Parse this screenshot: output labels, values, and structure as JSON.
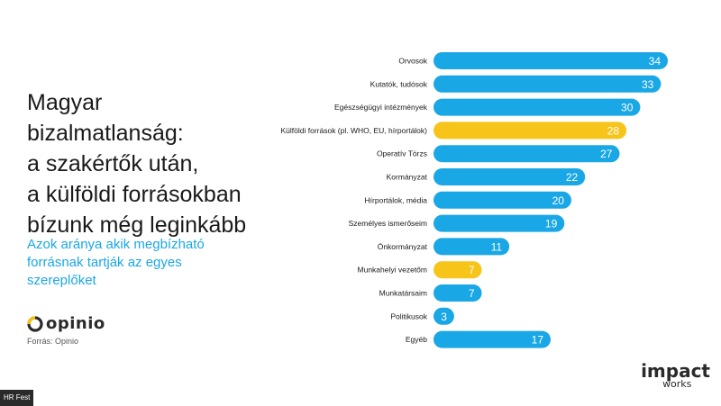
{
  "title_lines": [
    "Magyar",
    "bizalmatlanság:",
    "a szakértők után,",
    "a külföldi forrásokban",
    "bízunk még leginkább"
  ],
  "subtitle_lines": [
    "Azok aránya akik megbízható",
    "forrásnak tartják az egyes",
    "szereplőket"
  ],
  "logo": {
    "text": "opinio",
    "mark_color": "#f5c200"
  },
  "source": "Forrás: Opinio",
  "badge": "HR Fest",
  "brand": {
    "line1": "impact",
    "line2": "works"
  },
  "colors": {
    "bar_default": "#1aa7e6",
    "bar_highlight": "#f7c419",
    "label": "#1a1a1a",
    "value": "#ffffff"
  },
  "chart_data": {
    "type": "bar",
    "orientation": "horizontal",
    "categories": [
      "Orvosok",
      "Kutatók, tudósok",
      "Egészségügyi intézmények",
      "Külföldi források (pl. WHO, EU, hírportálok)",
      "Operatív Törzs",
      "Kormányzat",
      "Hírportálok, média",
      "Személyes ismerőseim",
      "Önkormányzat",
      "Munkahelyi vezetőm",
      "Munkatársaim",
      "Politikusok",
      "Egyéb"
    ],
    "values": [
      34,
      33,
      30,
      28,
      27,
      22,
      20,
      19,
      11,
      7,
      7,
      3,
      17
    ],
    "labels": [
      "34",
      "33",
      "30",
      "28",
      "27",
      "22",
      "20",
      "19",
      "11",
      "7",
      "7",
      "3",
      "17"
    ],
    "highlighted": [
      false,
      false,
      false,
      true,
      false,
      false,
      false,
      false,
      false,
      true,
      false,
      false,
      false
    ],
    "xlim": [
      0,
      34
    ]
  }
}
